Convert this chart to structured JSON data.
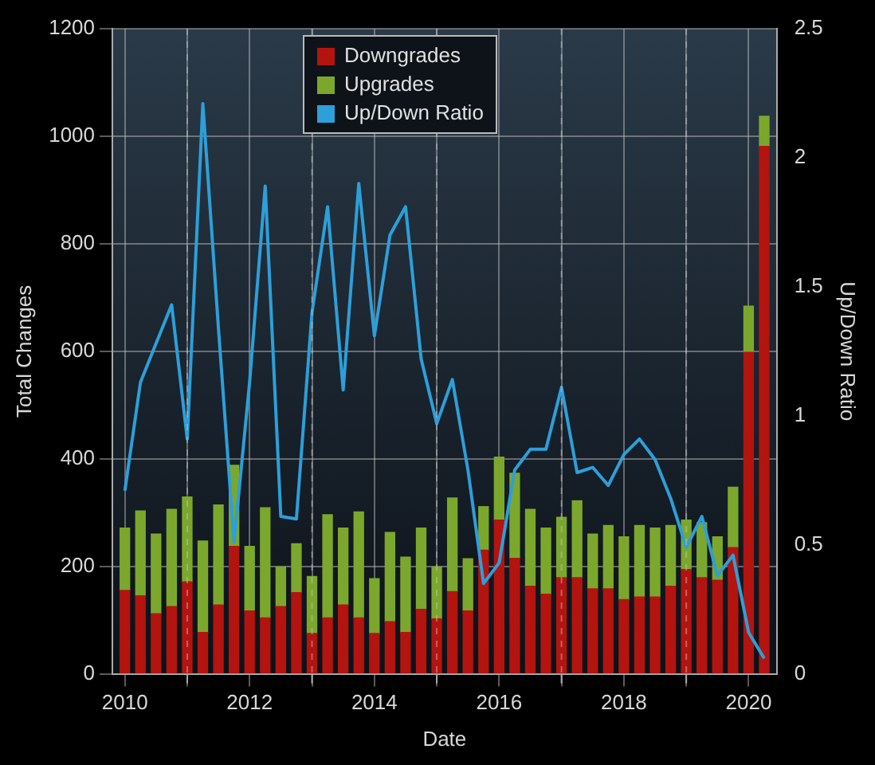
{
  "chart_data": {
    "type": "bar",
    "stacked": true,
    "xlabel": "Date",
    "ylabel": "Total Changes",
    "y2label": "Up/Down Ratio",
    "x": [
      2010,
      2010.25,
      2010.5,
      2010.75,
      2011,
      2011.25,
      2011.5,
      2011.75,
      2012,
      2012.25,
      2012.5,
      2012.75,
      2013,
      2013.25,
      2013.5,
      2013.75,
      2014,
      2014.25,
      2014.5,
      2014.75,
      2015,
      2015.25,
      2015.5,
      2015.75,
      2016,
      2016.25,
      2016.5,
      2016.75,
      2017,
      2017.25,
      2017.5,
      2017.75,
      2018,
      2018.25,
      2018.5,
      2018.75,
      2019,
      2019.25,
      2019.5,
      2019.75,
      2020,
      2020.25
    ],
    "xlim": [
      2009.8,
      2020.45
    ],
    "xticks": [
      2010,
      {
        "value": 2011,
        "label": null
      },
      2012,
      {
        "value": 2013,
        "label": null
      },
      2014,
      {
        "value": 2015,
        "label": null
      },
      2016,
      {
        "value": 2017,
        "label": null
      },
      2018,
      {
        "value": 2019,
        "label": null
      },
      2020
    ],
    "ylim": [
      0,
      1200
    ],
    "yticks": [
      0,
      200,
      400,
      600,
      800,
      1000,
      1200
    ],
    "y2lim": [
      0,
      2.5
    ],
    "y2ticks": [
      0,
      0.5,
      1,
      1.5,
      2,
      2.5
    ],
    "grid": true,
    "legend": "top",
    "series": [
      {
        "name": "Downgrades",
        "color": "#b3140f",
        "values": [
          155,
          145,
          112,
          125,
          171,
          77,
          128,
          237,
          117,
          104,
          125,
          151,
          75,
          104,
          128,
          104,
          75,
          97,
          77,
          120,
          102,
          153,
          117,
          230,
          286,
          215,
          163,
          148,
          179,
          179,
          158,
          158,
          138,
          143,
          143,
          163,
          194,
          179,
          174,
          235,
          598,
          981
        ]
      },
      {
        "name": "Upgrades",
        "color": "#7ba82c",
        "values": [
          116,
          158,
          148,
          181,
          158,
          170,
          186,
          151,
          120,
          205,
          74,
          91,
          106,
          192,
          143,
          197,
          102,
          166,
          140,
          151,
          97,
          174,
          97,
          81,
          117,
          158,
          143,
          123,
          112,
          143,
          102,
          118,
          117,
          133,
          128,
          113,
          92,
          102,
          81,
          112,
          86,
          56
        ]
      },
      {
        "name": "Up/Down Ratio",
        "type": "line",
        "axis": "y2",
        "color": "#2d9fd9",
        "values": [
          0.71,
          1.13,
          1.28,
          1.43,
          0.91,
          2.21,
          1.34,
          0.51,
          1.13,
          1.89,
          0.61,
          0.6,
          1.4,
          1.81,
          1.1,
          1.9,
          1.31,
          1.7,
          1.81,
          1.22,
          0.97,
          1.14,
          0.79,
          0.35,
          0.43,
          0.79,
          0.87,
          0.87,
          1.11,
          0.78,
          0.8,
          0.73,
          0.85,
          0.91,
          0.83,
          0.68,
          0.49,
          0.61,
          0.38,
          0.46,
          0.16,
          0.06
        ]
      }
    ]
  }
}
